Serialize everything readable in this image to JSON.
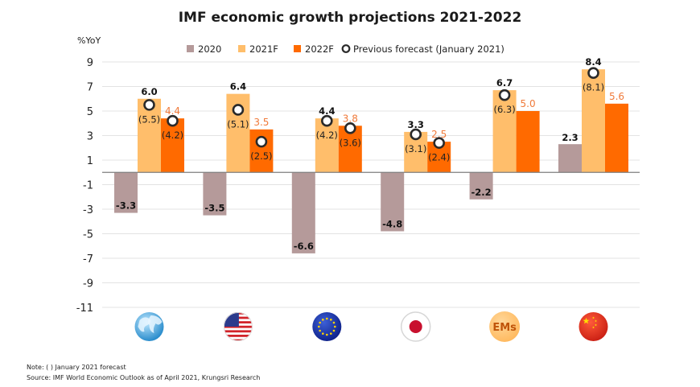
{
  "chart_data": {
    "type": "bar",
    "title": "IMF economic growth projections 2021-2022",
    "ylabel": "%YoY",
    "xlabel": "",
    "ylim": [
      -11,
      9
    ],
    "yticks": [
      9,
      7,
      5,
      3,
      1,
      -1,
      -3,
      -5,
      -7,
      -9,
      -11
    ],
    "grid": true,
    "legend_position": "top",
    "categories": [
      "World",
      "US",
      "Eurozone",
      "Japan",
      "EMs",
      "China"
    ],
    "category_icons": [
      "globe-icon",
      "us-flag-icon",
      "eu-flag-icon",
      "japan-flag-icon",
      "ems-badge-icon",
      "china-flag-icon"
    ],
    "ems_badge_text": "EMs",
    "series": [
      {
        "name": "2020",
        "color": "#b59a9a",
        "values": [
          -3.3,
          -3.5,
          -6.6,
          -4.8,
          -2.2,
          2.3
        ],
        "labels": [
          "-3.3",
          "-3.5",
          "-6.6",
          "-4.8",
          "-2.2",
          "2.3"
        ]
      },
      {
        "name": "2021F",
        "color": "#ffbe6b",
        "values": [
          6.0,
          6.4,
          4.4,
          3.3,
          6.7,
          8.4
        ],
        "labels": [
          "6.0",
          "6.4",
          "4.4",
          "3.3",
          "6.7",
          "8.4"
        ]
      },
      {
        "name": "2022F",
        "color": "#ff6a00",
        "values": [
          4.4,
          3.5,
          3.8,
          2.5,
          5.0,
          5.6
        ],
        "labels": [
          "4.4",
          "3.5",
          "3.8",
          "2.5",
          "5.0",
          "5.6"
        ]
      }
    ],
    "previous_forecast": {
      "name": "Previous forecast (January 2021)",
      "2021F": [
        5.5,
        5.1,
        4.2,
        3.1,
        6.3,
        8.1
      ],
      "2021F_labels": [
        "(5.5)",
        "(5.1)",
        "(4.2)",
        "(3.1)",
        "(6.3)",
        "(8.1)"
      ],
      "2022F": [
        4.2,
        2.5,
        3.6,
        2.4,
        null,
        null
      ],
      "2022F_labels": [
        "(4.2)",
        "(2.5)",
        "(3.6)",
        "(2.4)",
        null,
        null
      ]
    },
    "notes": [
      "Note: (   ) January 2021 forecast",
      "Source: IMF World Economic Outlook as of April 2021, Krungsri Research"
    ]
  }
}
